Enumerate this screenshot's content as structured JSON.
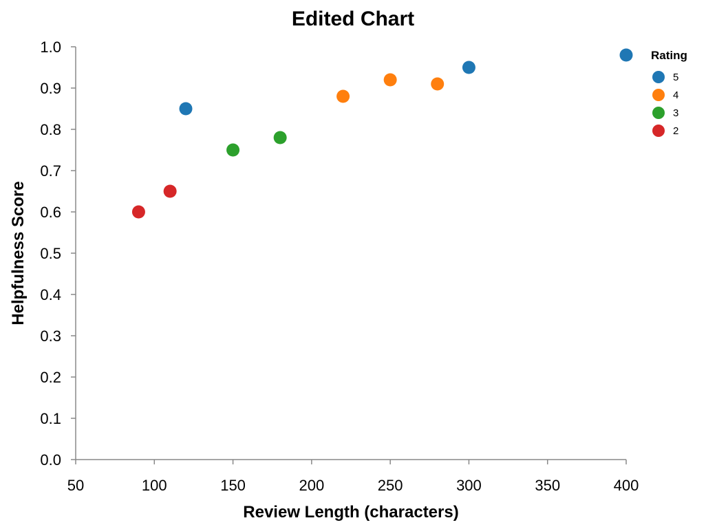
{
  "chart_data": {
    "type": "scatter",
    "title": "Edited Chart",
    "xlabel": "Review Length (characters)",
    "ylabel": "Helpfulness Score",
    "xlim": [
      50,
      400
    ],
    "ylim": [
      0.0,
      1.0
    ],
    "x_ticks": [
      "50",
      "100",
      "150",
      "200",
      "250",
      "300",
      "350",
      "400"
    ],
    "y_ticks": [
      "0.0",
      "0.1",
      "0.2",
      "0.3",
      "0.4",
      "0.5",
      "0.6",
      "0.7",
      "0.8",
      "0.9",
      "1.0"
    ],
    "grid": false,
    "legend": {
      "title": "Rating",
      "placement": "top-right",
      "entries": [
        {
          "label": "5",
          "color": "#1f77b4"
        },
        {
          "label": "4",
          "color": "#ff7f0e"
        },
        {
          "label": "3",
          "color": "#2ca02c"
        },
        {
          "label": "2",
          "color": "#d62728"
        }
      ]
    },
    "series": [
      {
        "name": "5",
        "color": "#1f77b4",
        "points": [
          [
            120,
            0.85
          ],
          [
            300,
            0.95
          ],
          [
            400,
            0.98
          ]
        ]
      },
      {
        "name": "4",
        "color": "#ff7f0e",
        "points": [
          [
            220,
            0.88
          ],
          [
            250,
            0.92
          ],
          [
            280,
            0.91
          ]
        ]
      },
      {
        "name": "3",
        "color": "#2ca02c",
        "points": [
          [
            150,
            0.75
          ],
          [
            180,
            0.78
          ]
        ]
      },
      {
        "name": "2",
        "color": "#d62728",
        "points": [
          [
            90,
            0.6
          ],
          [
            110,
            0.65
          ]
        ]
      }
    ]
  }
}
